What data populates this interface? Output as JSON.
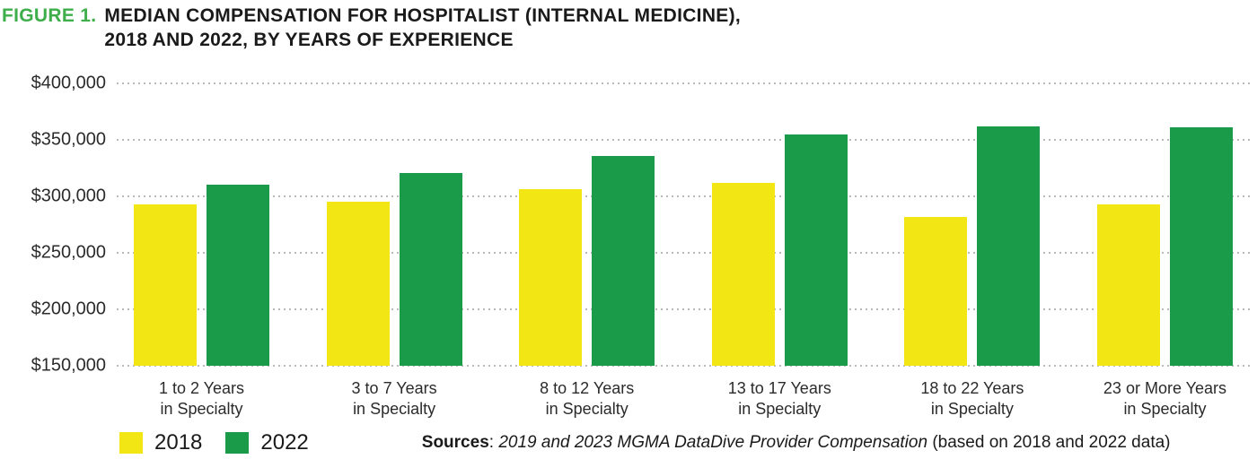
{
  "figure": {
    "label": "FIGURE 1.",
    "label_color": "#3DAE49",
    "title_line1": "MEDIAN COMPENSATION FOR HOSPITALIST (INTERNAL MEDICINE),",
    "title_line2": "2018 AND 2022, BY YEARS OF EXPERIENCE"
  },
  "legend": {
    "items": [
      {
        "label": "2018",
        "color": "#F2E614"
      },
      {
        "label": "2022",
        "color": "#199B4A"
      }
    ]
  },
  "source": {
    "bold": "Sources",
    "separator": ": ",
    "italic": "2019 and 2023 MGMA DataDive Provider Compensation",
    "rest": " (based on 2018 and 2022 data)"
  },
  "chart_data": {
    "type": "bar",
    "title": "Median Compensation for Hospitalist (Internal Medicine), 2018 and 2022, by Years of Experience",
    "categories": [
      "1 to 2 Years\nin Specialty",
      "3 to 7 Years\nin Specialty",
      "8 to 12 Years\nin Specialty",
      "13 to 17 Years\nin Specialty",
      "18 to 22 Years\nin Specialty",
      "23 or More Years\nin Specialty"
    ],
    "series": [
      {
        "name": "2018",
        "color": "#F2E614",
        "values": [
          293000,
          295000,
          306000,
          312000,
          282000,
          293000
        ]
      },
      {
        "name": "2022",
        "color": "#199B4A",
        "values": [
          310000,
          321000,
          336000,
          355000,
          362000,
          361000
        ]
      }
    ],
    "ylim": [
      150000,
      400000
    ],
    "y_ticks": [
      {
        "value": 400000,
        "label": "$400,000"
      },
      {
        "value": 350000,
        "label": "$350,000"
      },
      {
        "value": 300000,
        "label": "$300,000"
      },
      {
        "value": 250000,
        "label": "$250,000"
      },
      {
        "value": 200000,
        "label": "$200,000"
      },
      {
        "value": 150000,
        "label": "$150,000"
      }
    ],
    "grid": {
      "horizontal": true,
      "style": "dotted",
      "color": "#B9B9B9"
    },
    "legend_position": "bottom-left"
  }
}
